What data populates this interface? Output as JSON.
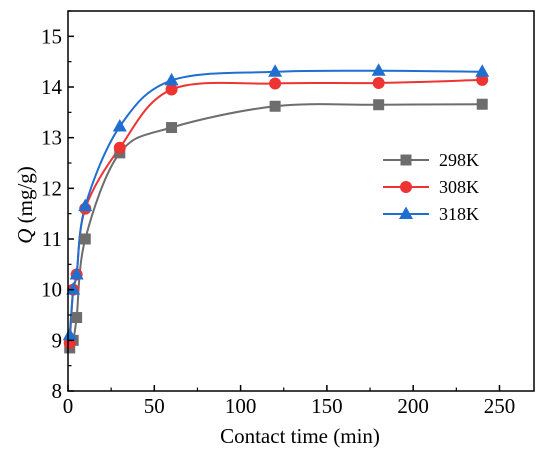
{
  "chart_data": {
    "type": "scatter",
    "xlabel": "Contact time (min)",
    "ylabel_italic": "Q",
    "ylabel_unit": " (mg/g)",
    "xlim": [
      0,
      270
    ],
    "ylim": [
      8,
      15.5
    ],
    "xticks": [
      0,
      50,
      100,
      150,
      200,
      250
    ],
    "yticks": [
      8,
      9,
      10,
      11,
      12,
      13,
      14,
      15
    ],
    "legend_position": "center-right",
    "series": [
      {
        "name": "298K",
        "marker": "square",
        "color": "#6d6d6d",
        "x": [
          1,
          3,
          5,
          10,
          30,
          60,
          120,
          180,
          240
        ],
        "y": [
          8.85,
          9.0,
          9.45,
          11.0,
          12.7,
          13.2,
          13.62,
          13.65,
          13.66
        ]
      },
      {
        "name": "308K",
        "marker": "circle",
        "color": "#ee3333",
        "x": [
          1,
          3,
          5,
          10,
          30,
          60,
          120,
          180,
          240
        ],
        "y": [
          8.95,
          10.0,
          10.3,
          11.6,
          12.8,
          13.95,
          14.07,
          14.08,
          14.14
        ]
      },
      {
        "name": "318K",
        "marker": "triangle",
        "color": "#1f6fd1",
        "x": [
          1,
          3,
          5,
          10,
          30,
          60,
          120,
          180,
          240
        ],
        "y": [
          9.1,
          10.0,
          10.3,
          11.65,
          13.22,
          14.13,
          14.3,
          14.32,
          14.3
        ]
      }
    ]
  }
}
